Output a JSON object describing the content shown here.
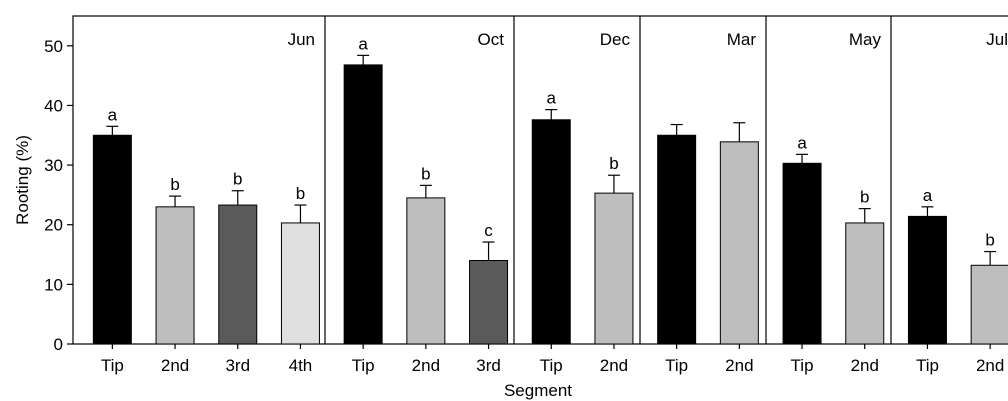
{
  "chart_data": {
    "type": "bar",
    "xlabel": "Segment",
    "ylabel": "Rooting (%)",
    "ylim": [
      0,
      55
    ],
    "yticks": [
      0,
      10,
      20,
      30,
      40,
      50
    ],
    "grid": false,
    "legend": "none",
    "panels": [
      {
        "label": "Jun",
        "categories": [
          "Tip",
          "2nd",
          "3rd",
          "4th"
        ],
        "values": [
          35,
          23,
          23.3,
          20.3
        ],
        "errors": [
          1.5,
          1.8,
          2.4,
          3.0
        ],
        "letters": [
          "a",
          "b",
          "b",
          "b"
        ],
        "colors": [
          "#000000",
          "#bebebe",
          "#5a5a5a",
          "#e0e0e0"
        ]
      },
      {
        "label": "Oct",
        "categories": [
          "Tip",
          "2nd",
          "3rd"
        ],
        "values": [
          46.8,
          24.5,
          14
        ],
        "errors": [
          1.6,
          2.1,
          3.1
        ],
        "letters": [
          "a",
          "b",
          "c"
        ],
        "colors": [
          "#000000",
          "#bebebe",
          "#5a5a5a"
        ]
      },
      {
        "label": "Dec",
        "categories": [
          "Tip",
          "2nd"
        ],
        "values": [
          37.6,
          25.3
        ],
        "errors": [
          1.7,
          3.0
        ],
        "letters": [
          "a",
          "b"
        ],
        "colors": [
          "#000000",
          "#bebebe"
        ]
      },
      {
        "label": "Mar",
        "categories": [
          "Tip",
          "2nd"
        ],
        "values": [
          35,
          33.9
        ],
        "errors": [
          1.8,
          3.2
        ],
        "letters": [
          "",
          ""
        ],
        "colors": [
          "#000000",
          "#bebebe"
        ]
      },
      {
        "label": "May",
        "categories": [
          "Tip",
          "2nd"
        ],
        "values": [
          30.3,
          20.3
        ],
        "errors": [
          1.5,
          2.4
        ],
        "letters": [
          "a",
          "b"
        ],
        "colors": [
          "#000000",
          "#bebebe"
        ]
      },
      {
        "label": "Jul",
        "categories": [
          "Tip",
          "2nd"
        ],
        "values": [
          21.4,
          13.2
        ],
        "errors": [
          1.6,
          2.3
        ],
        "letters": [
          "a",
          "b"
        ],
        "colors": [
          "#000000",
          "#bebebe"
        ]
      }
    ]
  }
}
